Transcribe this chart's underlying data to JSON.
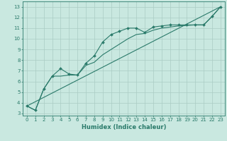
{
  "title": "",
  "xlabel": "Humidex (Indice chaleur)",
  "ylabel": "",
  "xlim": [
    -0.5,
    23.5
  ],
  "ylim": [
    2.8,
    13.5
  ],
  "xticks": [
    0,
    1,
    2,
    3,
    4,
    5,
    6,
    7,
    8,
    9,
    10,
    11,
    12,
    13,
    14,
    15,
    16,
    17,
    18,
    19,
    20,
    21,
    22,
    23
  ],
  "yticks": [
    3,
    4,
    5,
    6,
    7,
    8,
    9,
    10,
    11,
    12,
    13
  ],
  "bg_color": "#c9e8e0",
  "line_color": "#2a7a6a",
  "grid_color": "#aaccc4",
  "line1_x": [
    0,
    1,
    2,
    3,
    4,
    5,
    6,
    7,
    8,
    9,
    10,
    11,
    12,
    13,
    14,
    15,
    16,
    17,
    18,
    19,
    20,
    21,
    22,
    23
  ],
  "line1_y": [
    3.7,
    3.3,
    5.3,
    6.5,
    7.2,
    6.7,
    6.6,
    7.7,
    8.4,
    9.7,
    10.4,
    10.7,
    11.0,
    11.0,
    10.6,
    11.1,
    11.2,
    11.3,
    11.3,
    11.3,
    11.3,
    11.3,
    12.1,
    13.0
  ],
  "line2_x": [
    0,
    1,
    2,
    3,
    4,
    5,
    6,
    7,
    8,
    9,
    10,
    11,
    12,
    13,
    14,
    15,
    16,
    17,
    18,
    19,
    20,
    21,
    22,
    23
  ],
  "line2_y": [
    3.7,
    3.3,
    5.3,
    6.5,
    6.5,
    6.6,
    6.6,
    7.5,
    7.8,
    8.5,
    9.0,
    9.5,
    10.0,
    10.4,
    10.5,
    10.8,
    11.0,
    11.1,
    11.2,
    11.25,
    11.3,
    11.3,
    12.1,
    13.0
  ],
  "line3_x": [
    0,
    23
  ],
  "line3_y": [
    3.7,
    13.0
  ]
}
